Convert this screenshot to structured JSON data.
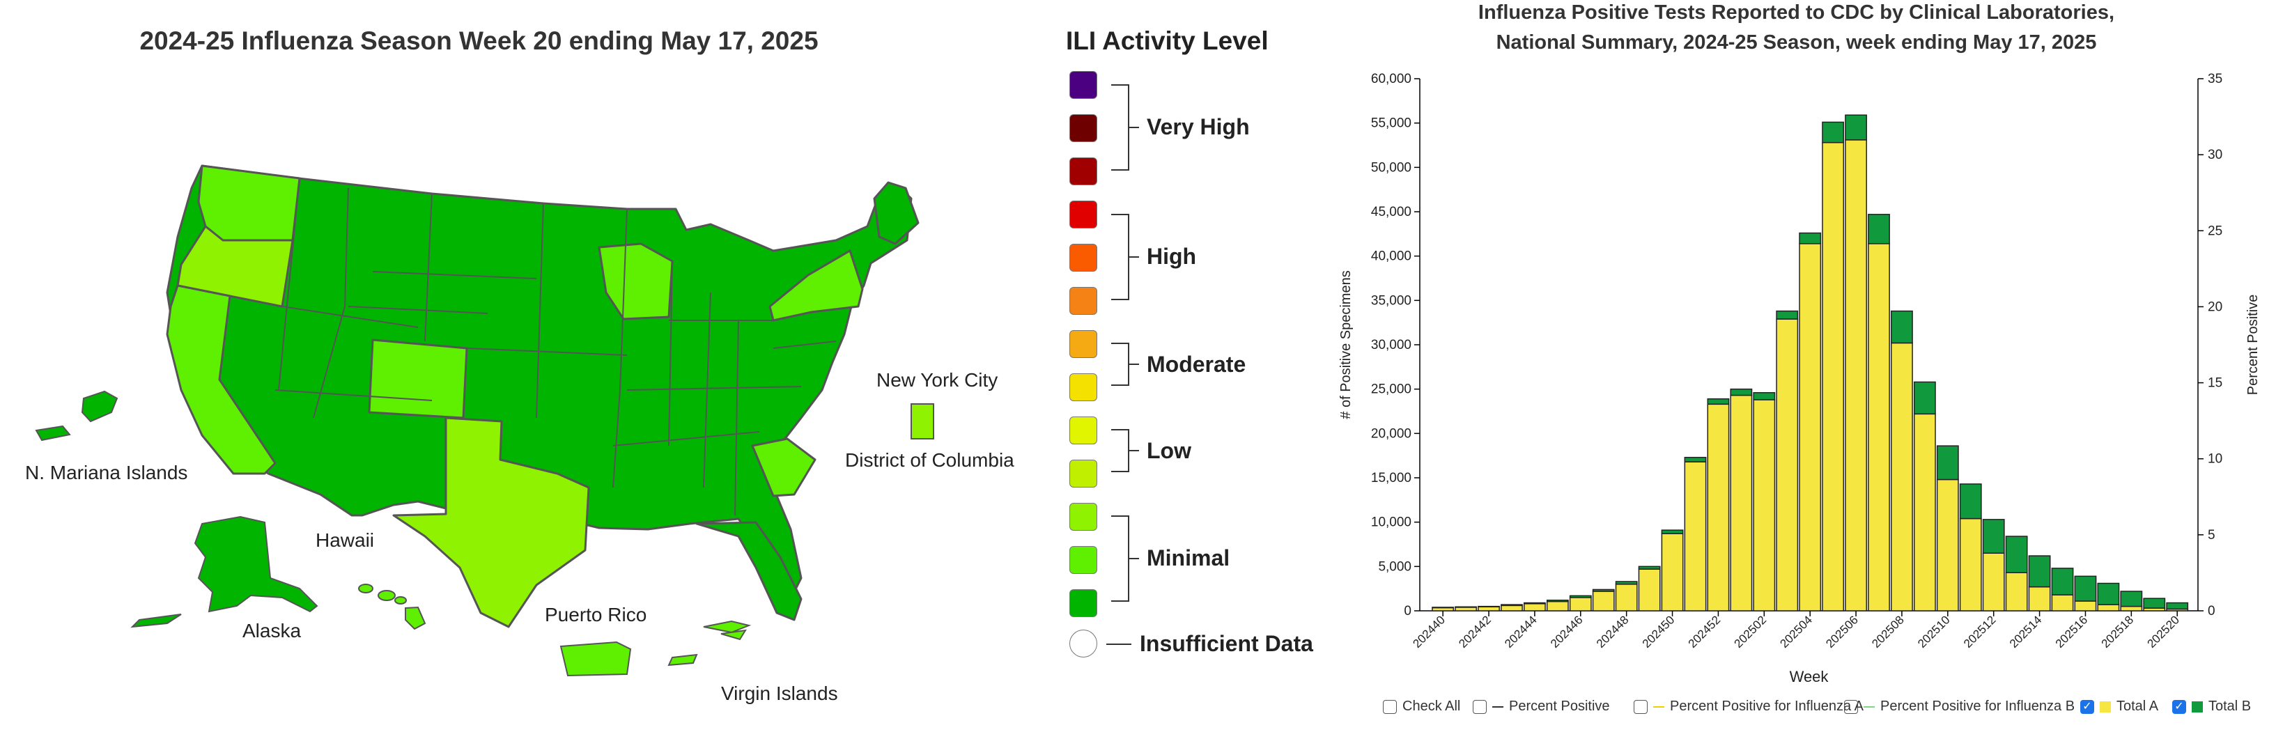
{
  "map": {
    "title": "2024-25 Influenza Season Week 20 ending May 17, 2025",
    "labels": {
      "nyc": "New York City",
      "dc": "District of Columbia",
      "nmi": "N. Mariana Islands",
      "hawaii": "Hawaii",
      "alaska": "Alaska",
      "pr": "Puerto Rico",
      "vi": "Virgin Islands"
    },
    "colors": {
      "minimal_dark": "#00b400",
      "minimal_mid": "#5ef000",
      "minimal_light": "#8ff200",
      "border": "#555555"
    }
  },
  "legend": {
    "title": "ILI Activity Level",
    "swatches": [
      "#4b0082",
      "#6e0000",
      "#a00000",
      "#e00000",
      "#fa5a00",
      "#f58214",
      "#f5aa14",
      "#f5e100",
      "#e1f500",
      "#c0f000",
      "#8ff200",
      "#5ef000",
      "#00b400"
    ],
    "groups": {
      "very_high": "Very High",
      "high": "High",
      "moderate": "Moderate",
      "low": "Low",
      "minimal": "Minimal",
      "insufficient": "Insufficient Data"
    }
  },
  "chart": {
    "title_line1": "Influenza Positive Tests Reported to CDC by Clinical Laboratories,",
    "title_line2": "National Summary, 2024-25 Season, week ending May 17, 2025",
    "controls": {
      "check_all": "Check All",
      "percent_positive": "Percent Positive",
      "percent_a": "Percent Positive for Influenza A",
      "percent_b": "Percent Positive for Influenza B",
      "total_a": "Total A",
      "total_b": "Total B"
    }
  },
  "chart_data": {
    "type": "bar",
    "stacked": true,
    "title": "Influenza Positive Tests Reported to CDC by Clinical Laboratories, National Summary, 2024-25 Season, week ending May 17, 2025",
    "xlabel": "Week",
    "ylabel": "# of Positive Specimens",
    "y2label": "Percent Positive",
    "ylim": [
      0,
      60000
    ],
    "y2lim": [
      0,
      35
    ],
    "yticks": [
      "0",
      "5,000",
      "10,000",
      "15,000",
      "20,000",
      "25,000",
      "30,000",
      "35,000",
      "40,000",
      "45,000",
      "50,000",
      "55,000",
      "60,000"
    ],
    "y2ticks": [
      "0",
      "5",
      "10",
      "15",
      "20",
      "25",
      "30",
      "35"
    ],
    "categories": [
      "202440",
      "202441",
      "202442",
      "202443",
      "202444",
      "202445",
      "202446",
      "202447",
      "202448",
      "202449",
      "202450",
      "202451",
      "202452",
      "202501",
      "202502",
      "202503",
      "202504",
      "202505",
      "202506",
      "202507",
      "202508",
      "202509",
      "202510",
      "202511",
      "202512",
      "202513",
      "202514",
      "202515",
      "202516",
      "202517",
      "202518",
      "202519",
      "202520"
    ],
    "tick_labels": [
      "202440",
      "202442",
      "202444",
      "202446",
      "202448",
      "202450",
      "202452",
      "202502",
      "202504",
      "202506",
      "202508",
      "202510",
      "202512",
      "202514",
      "202516",
      "202518",
      "202520"
    ],
    "series": [
      {
        "name": "Total A",
        "color": "#f5e642",
        "values": [
          350,
          400,
          450,
          600,
          800,
          1050,
          1500,
          2200,
          3000,
          4700,
          8700,
          16800,
          23300,
          24300,
          23800,
          32900,
          41400,
          52800,
          53100,
          41400,
          30200,
          22200,
          14800,
          10400,
          6500,
          4300,
          2700,
          1800,
          1100,
          700,
          500,
          300,
          200
        ]
      },
      {
        "name": "Total B",
        "color": "#119a3d",
        "values": [
          50,
          50,
          50,
          100,
          100,
          150,
          200,
          200,
          300,
          300,
          400,
          500,
          600,
          700,
          800,
          900,
          1200,
          2300,
          2800,
          3300,
          3600,
          3600,
          3800,
          3900,
          3800,
          4100,
          3500,
          3000,
          2800,
          2400,
          1700,
          1100,
          700
        ]
      }
    ]
  }
}
